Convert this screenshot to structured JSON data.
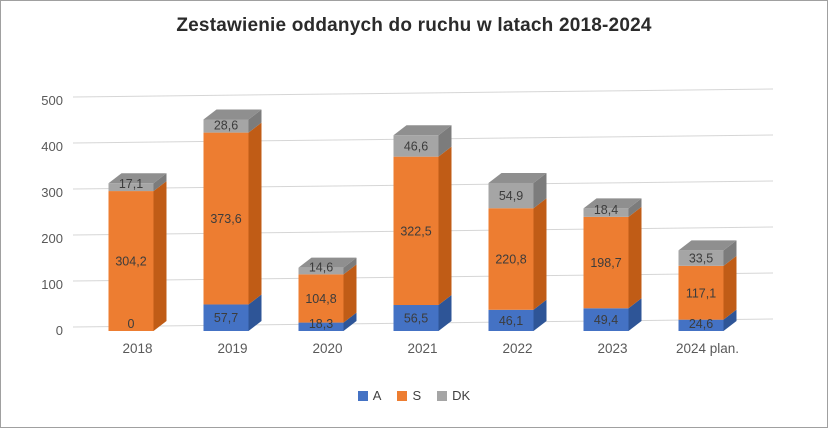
{
  "chart_data": {
    "type": "bar",
    "stacked": true,
    "pseudo_3d": true,
    "title": "Zestawienie oddanych do ruchu w latach 2018-2024",
    "categories": [
      "2018",
      "2019",
      "2020",
      "2021",
      "2022",
      "2023",
      "2024 plan."
    ],
    "series": [
      {
        "name": "A",
        "color": "#4472C4",
        "side_color": "#2E5597",
        "values": [
          0,
          57.7,
          18.3,
          56.5,
          46.1,
          49.4,
          24.6
        ],
        "labels": [
          "0",
          "57,7",
          "18,3",
          "56,5",
          "46,1",
          "49,4",
          "24,6"
        ]
      },
      {
        "name": "S",
        "color": "#ED7D31",
        "side_color": "#C05C16",
        "values": [
          304.2,
          373.6,
          104.8,
          322.5,
          220.8,
          198.7,
          117.1
        ],
        "labels": [
          "304,2",
          "373,6",
          "104,8",
          "322,5",
          "220,8",
          "198,7",
          "117,1"
        ]
      },
      {
        "name": "DK",
        "color": "#A5A5A5",
        "side_color": "#7C7C7C",
        "values": [
          17.1,
          28.6,
          14.6,
          46.6,
          54.9,
          18.4,
          33.5
        ],
        "labels": [
          "17,1",
          "28,6",
          "14,6",
          "46,6",
          "54,9",
          "18,4",
          "33,5"
        ]
      }
    ],
    "top_color": "#8F8F8F",
    "gridline_color": "#D6D6D6",
    "xlabel": "",
    "ylabel": "",
    "ylim": [
      0,
      500
    ],
    "yticks": [
      0,
      100,
      200,
      300,
      400,
      500
    ],
    "grid": true,
    "legend_position": "bottom"
  }
}
